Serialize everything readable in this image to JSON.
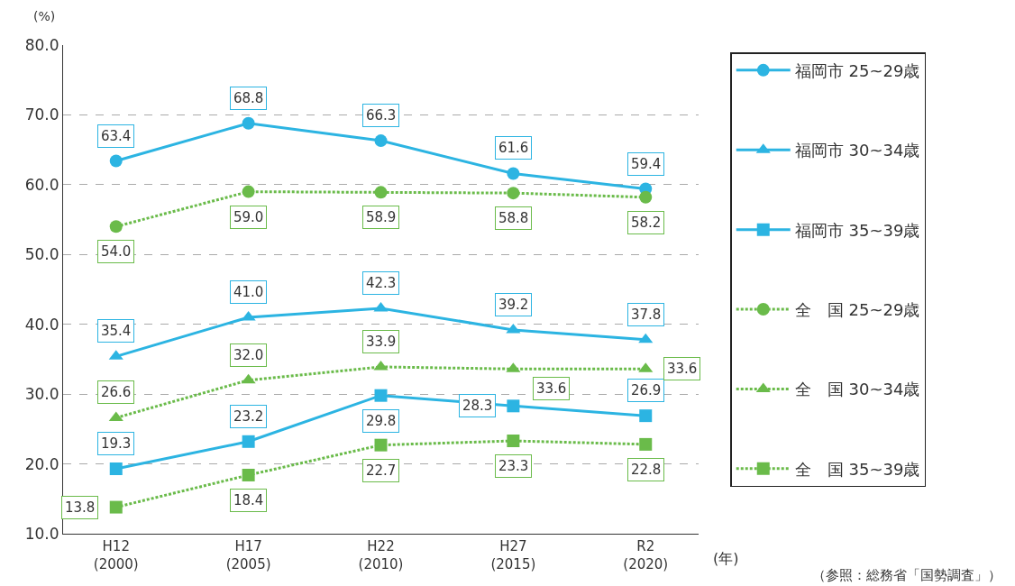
{
  "chart_data": {
    "type": "line",
    "ylabel": "(%)",
    "xlabel": "(年)",
    "categories": [
      "H12\n(2000)",
      "H17\n(2005)",
      "H22\n(2010)",
      "H27\n(2015)",
      "R2\n(2020)"
    ],
    "ylim": [
      10,
      80
    ],
    "yticks": [
      {
        "value": 10,
        "label": "10.0"
      },
      {
        "value": 20,
        "label": "20.0"
      },
      {
        "value": 30,
        "label": "30.0"
      },
      {
        "value": 40,
        "label": "40.0"
      },
      {
        "value": 50,
        "label": "50.0"
      },
      {
        "value": 60,
        "label": "60.0"
      },
      {
        "value": 70,
        "label": "70.0"
      },
      {
        "value": 80,
        "label": "80.0"
      }
    ],
    "grid": "y",
    "legend": "right",
    "series": [
      {
        "name": "福岡市 25~29歳",
        "color": "#2cb4e2",
        "marker": "circle",
        "line_style": "solid",
        "values": [
          63.4,
          68.8,
          66.3,
          61.6,
          59.4
        ],
        "value_labels": [
          "63.4",
          "68.8",
          "66.3",
          "61.6",
          "59.4"
        ]
      },
      {
        "name": "福岡市 30~34歳",
        "color": "#2cb4e2",
        "marker": "triangle",
        "line_style": "solid",
        "values": [
          35.4,
          41.0,
          42.3,
          39.2,
          37.8
        ],
        "value_labels": [
          "35.4",
          "41.0",
          "42.3",
          "39.2",
          "37.8"
        ]
      },
      {
        "name": "福岡市 35~39歳",
        "color": "#2cb4e2",
        "marker": "square",
        "line_style": "solid",
        "values": [
          19.3,
          23.2,
          29.8,
          28.3,
          26.9
        ],
        "value_labels": [
          "19.3",
          "23.2",
          "29.8",
          "28.3",
          "26.9"
        ]
      },
      {
        "name": "全　国 25~29歳",
        "color": "#6abb4a",
        "marker": "circle",
        "line_style": "dotted",
        "values": [
          54.0,
          59.0,
          58.9,
          58.8,
          58.2
        ],
        "value_labels": [
          "54.0",
          "59.0",
          "58.9",
          "58.8",
          "58.2"
        ]
      },
      {
        "name": "全　国 30~34歳",
        "color": "#6abb4a",
        "marker": "triangle",
        "line_style": "dotted",
        "values": [
          26.6,
          32.0,
          33.9,
          33.6,
          33.6
        ],
        "value_labels": [
          "26.6",
          "32.0",
          "33.9",
          "33.6",
          "33.6"
        ]
      },
      {
        "name": "全　国 35~39歳",
        "color": "#6abb4a",
        "marker": "square",
        "line_style": "dotted",
        "values": [
          13.8,
          18.4,
          22.7,
          23.3,
          22.8
        ],
        "value_labels": [
          "13.8",
          "18.4",
          "22.7",
          "23.3",
          "22.8"
        ]
      }
    ],
    "annotations": [
      "（参照：総務省「国勢調査」）"
    ]
  }
}
